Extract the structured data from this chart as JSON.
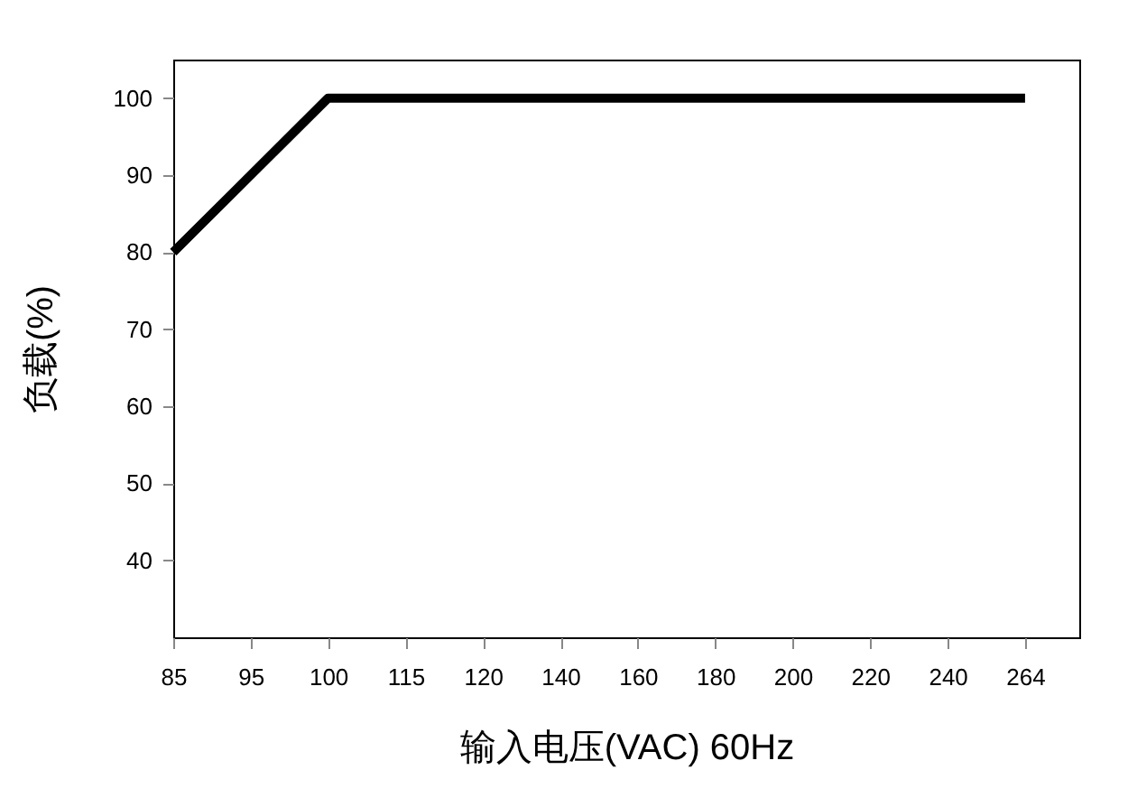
{
  "chart_data": {
    "type": "line",
    "xlabel": "输入电压(VAC) 60Hz",
    "ylabel": "负载(%)",
    "categories": [
      "85",
      "95",
      "100",
      "115",
      "120",
      "140",
      "160",
      "180",
      "200",
      "220",
      "240",
      "264"
    ],
    "series": [
      {
        "color": "#000000",
        "values": [
          80,
          90,
          100,
          100,
          100,
          100,
          100,
          100,
          100,
          100,
          100,
          100
        ]
      }
    ],
    "ylim": [
      30,
      105
    ],
    "yticks": [
      40,
      50,
      60,
      70,
      80,
      90,
      100
    ],
    "grid": false,
    "legend": false,
    "marker": "none",
    "line_style": "solid"
  }
}
